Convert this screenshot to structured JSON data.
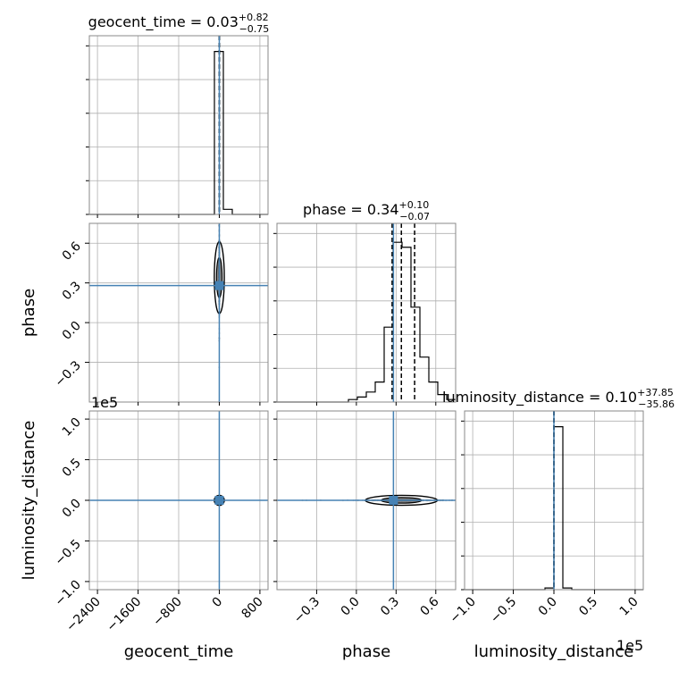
{
  "chart_data": {
    "type": "corner",
    "parameters": [
      "geocent_time",
      "phase",
      "luminosity_distance"
    ],
    "grid": true,
    "truth_color": "#4682b4",
    "titles": [
      {
        "name": "geocent_time = ",
        "median": "0.03",
        "plus": "+0.82",
        "minus": "−0.75"
      },
      {
        "name": "phase = ",
        "median": "0.34",
        "plus": "+0.10",
        "minus": "−0.07"
      },
      {
        "name": "luminosity_distance = ",
        "median": "0.10",
        "plus": "+37.85",
        "minus": "−35.86"
      }
    ],
    "axes": {
      "geocent_time": {
        "range": [
          -2560,
          960
        ],
        "ticks": [
          -2400,
          -1600,
          -800,
          0,
          800
        ],
        "tick_labels": [
          "−2400",
          "−1600",
          "−800",
          "0",
          "800"
        ],
        "label": "geocent_time",
        "truth": 0
      },
      "phase": {
        "range": [
          -0.6,
          0.75
        ],
        "ticks": [
          -0.3,
          0.0,
          0.3,
          0.6
        ],
        "tick_labels": [
          "−0.3",
          "0.0",
          "0.3",
          "0.6"
        ],
        "label": "phase",
        "truth": 0.28
      },
      "luminosity_distance": {
        "range": [
          -1.1,
          1.1
        ],
        "ticks": [
          -1.0,
          -0.5,
          0.0,
          0.5,
          1.0
        ],
        "tick_labels": [
          "−1.0",
          "−0.5",
          "0.0",
          "0.5",
          "1.0"
        ],
        "label": "luminosity_distance",
        "offset_label": "1e5",
        "truth": 0.0
      }
    },
    "histograms": {
      "geocent_time": {
        "edges": [
          -2560,
          -2384,
          -2208,
          -2032,
          -1856,
          -1680,
          -1504,
          -1328,
          -1152,
          -976,
          -800,
          -624,
          -448,
          -272,
          -96,
          80,
          256,
          432,
          608,
          784,
          960
        ],
        "counts": [
          0,
          0,
          0,
          0,
          0,
          0,
          0,
          0,
          0,
          0,
          0,
          0,
          0,
          0,
          96,
          3,
          0,
          0,
          0,
          0
        ],
        "ymax": 100,
        "quantiles": [
          -0.72,
          0.03,
          0.85
        ]
      },
      "phase": {
        "edges": [
          -0.6,
          -0.5325,
          -0.465,
          -0.3975,
          -0.33,
          -0.2625,
          -0.195,
          -0.1275,
          -0.06,
          0.0075,
          0.075,
          0.1425,
          0.21,
          0.2775,
          0.345,
          0.4125,
          0.48,
          0.5475,
          0.615,
          0.6825,
          0.75
        ],
        "counts": [
          0,
          0,
          0,
          0,
          0,
          0,
          0,
          0,
          1,
          2,
          4,
          8,
          30,
          64,
          62,
          38,
          18,
          8,
          3,
          1
        ],
        "ymax": 68,
        "quantiles": [
          0.27,
          0.34,
          0.44
        ]
      },
      "luminosity_distance": {
        "edges": [
          -1.1,
          -0.99,
          -0.88,
          -0.77,
          -0.66,
          -0.55,
          -0.44,
          -0.33,
          -0.22,
          -0.11,
          0.0,
          0.11,
          0.22,
          0.33,
          0.44,
          0.55,
          0.66,
          0.77,
          0.88,
          0.99,
          1.1
        ],
        "counts": [
          0,
          0,
          0,
          0,
          0,
          0,
          0,
          0,
          0,
          1,
          96,
          1,
          0,
          0,
          0,
          0,
          0,
          0,
          0,
          0
        ],
        "ymax": 100,
        "quantiles": [
          -0.0003,
          0.0,
          0.0004
        ]
      }
    }
  }
}
